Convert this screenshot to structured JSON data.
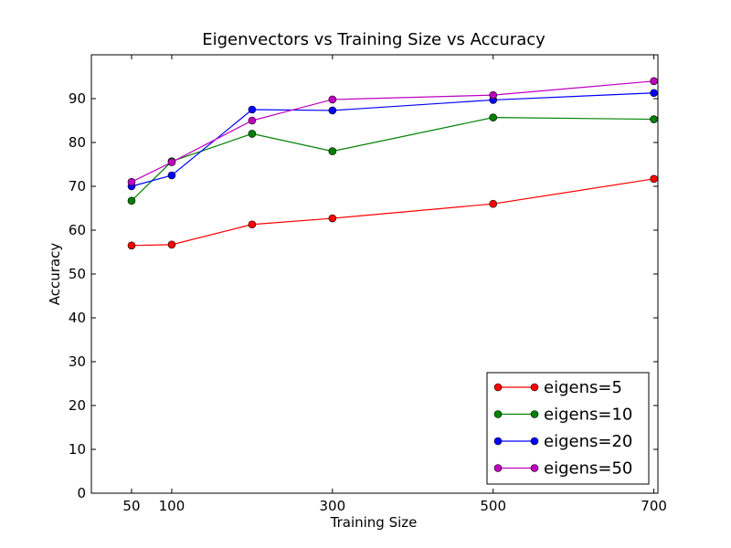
{
  "chart_data": {
    "type": "line",
    "title": "Eigenvectors vs Training Size vs Accuracy",
    "xlabel": "Training Size",
    "ylabel": "Accuracy",
    "xlim": [
      0,
      705
    ],
    "ylim": [
      0,
      100
    ],
    "xticks": [
      50,
      100,
      300,
      500,
      700
    ],
    "yticks": [
      0,
      10,
      20,
      30,
      40,
      50,
      60,
      70,
      80,
      90
    ],
    "legend_position": "lower-right",
    "grid": false,
    "x": [
      50,
      100,
      200,
      300,
      500,
      700
    ],
    "series": [
      {
        "name": "eigens=5",
        "color": "#ff0000",
        "values": [
          56.5,
          56.7,
          61.3,
          62.7,
          66.0,
          71.7
        ]
      },
      {
        "name": "eigens=10",
        "color": "#008000",
        "values": [
          66.7,
          75.7,
          82.0,
          78.0,
          85.7,
          85.3
        ]
      },
      {
        "name": "eigens=20",
        "color": "#0000ff",
        "values": [
          70.0,
          72.5,
          87.5,
          87.3,
          89.7,
          91.3
        ]
      },
      {
        "name": "eigens=50",
        "color": "#bf00bf",
        "values": [
          71.0,
          75.5,
          85.0,
          89.8,
          90.8,
          94.0
        ]
      }
    ]
  }
}
